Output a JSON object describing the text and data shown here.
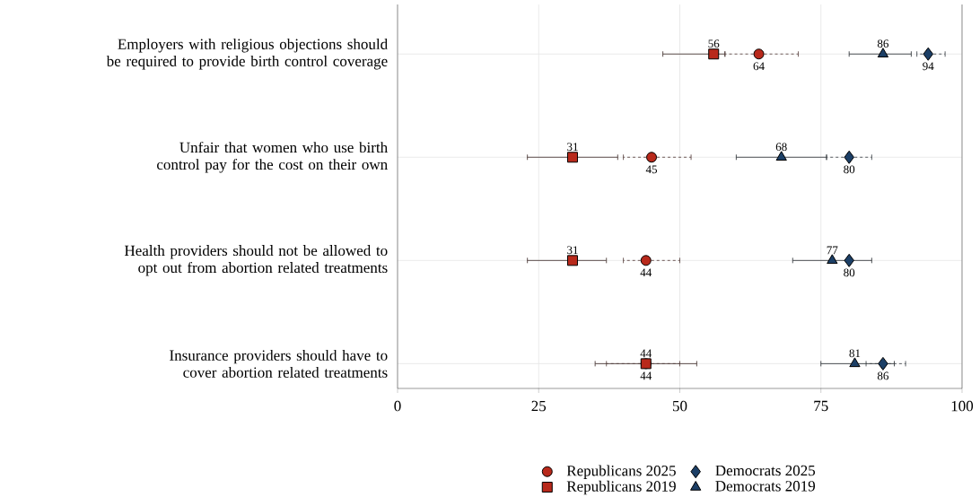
{
  "chart_data": {
    "type": "scatter",
    "orientation": "horizontal",
    "categories": [
      "Employers with religious objections should be required to provide birth control coverage",
      "Unfair that women who use birth control pay for the cost on their own",
      "Health providers should not be allowed to opt out from abortion related treatments",
      "Insurance providers should have to cover abortion related treatments"
    ],
    "series": [
      {
        "name": "Republicans 2025",
        "color": "#b8291b",
        "marker": "circle",
        "line_style": "dashed",
        "values": [
          64,
          45,
          44,
          44
        ],
        "errors": [
          [
            58,
            71
          ],
          [
            40,
            52
          ],
          [
            40,
            50
          ],
          [
            37,
            50
          ]
        ]
      },
      {
        "name": "Republicans 2019",
        "color": "#b8291b",
        "marker": "square",
        "line_style": "solid",
        "values": [
          56,
          31,
          31,
          44
        ],
        "errors": [
          [
            47,
            58
          ],
          [
            23,
            39
          ],
          [
            23,
            37
          ],
          [
            35,
            53
          ]
        ]
      },
      {
        "name": "Democrats 2025",
        "color": "#1c3f66",
        "marker": "diamond",
        "line_style": "dashed",
        "values": [
          94,
          80,
          80,
          86
        ],
        "errors": [
          [
            92,
            97
          ],
          [
            76,
            84
          ],
          null,
          [
            83,
            90
          ]
        ]
      },
      {
        "name": "Democrats 2019",
        "color": "#1c3f66",
        "marker": "triangle",
        "line_style": "solid",
        "values": [
          86,
          68,
          77,
          81
        ],
        "errors": [
          [
            80,
            91
          ],
          [
            60,
            76
          ],
          [
            70,
            84
          ],
          [
            75,
            88
          ]
        ]
      }
    ],
    "xlim": [
      0,
      100
    ],
    "xticks": [
      0,
      25,
      50,
      75,
      100
    ],
    "grid": true,
    "legend": "bottom",
    "data_labels": true
  }
}
